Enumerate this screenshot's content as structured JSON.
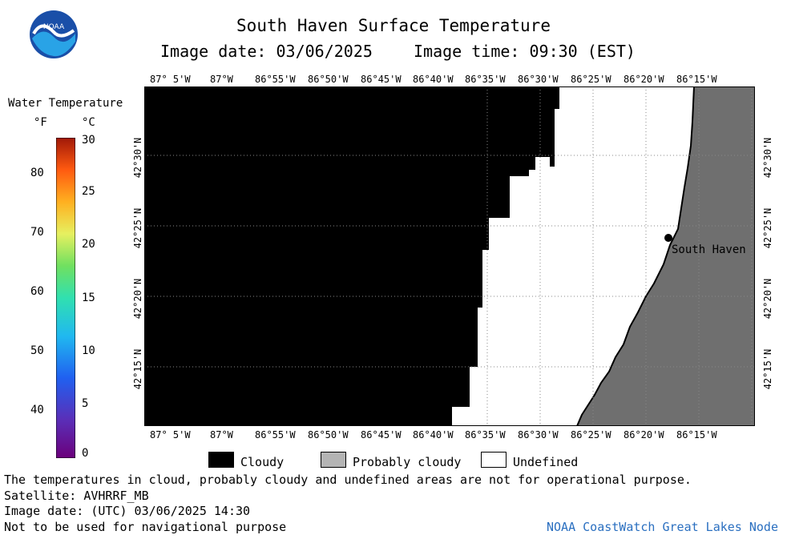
{
  "header": {
    "title": "South Haven Surface Temperature",
    "image_date_label": "Image date: 03/06/2025",
    "image_time_label": "Image time: 09:30 (EST)"
  },
  "logo": {
    "text": "NOAA"
  },
  "map": {
    "lon_labels": [
      "87° 5'W",
      "87°W",
      "86°55'W",
      "86°50'W",
      "86°45'W",
      "86°40'W",
      "86°35'W",
      "86°30'W",
      "86°25'W",
      "86°20'W",
      "86°15'W"
    ],
    "lat_labels": [
      "42°30'N",
      "42°25'N",
      "42°20'N",
      "42°15'N"
    ],
    "city_label": "South Haven",
    "colors": {
      "cloudy": "#000000",
      "land": "#6f6f6f",
      "undefined": "#ffffff",
      "grid": "#888888"
    }
  },
  "colorbar": {
    "title": "Water Temperature",
    "unit_f": "°F",
    "unit_c": "°C",
    "f_ticks": [
      "80",
      "70",
      "60",
      "50",
      "40"
    ],
    "c_ticks": [
      "30",
      "25",
      "20",
      "15",
      "10",
      "5",
      "0"
    ]
  },
  "legend": {
    "items": [
      {
        "label": "Cloudy",
        "color": "#000000"
      },
      {
        "label": "Probably cloudy",
        "color": "#b4b4b4"
      },
      {
        "label": "Undefined",
        "color": "#ffffff"
      }
    ]
  },
  "footer": {
    "line1": "The temperatures in cloud, probably cloudy and undefined areas are not for operational purpose.",
    "line2": "Satellite: AVHRRF_MB",
    "line3": "Image date: (UTC) 03/06/2025  14:30",
    "line4": "Not to be used for navigational purpose",
    "credit": "NOAA CoastWatch Great Lakes Node"
  }
}
